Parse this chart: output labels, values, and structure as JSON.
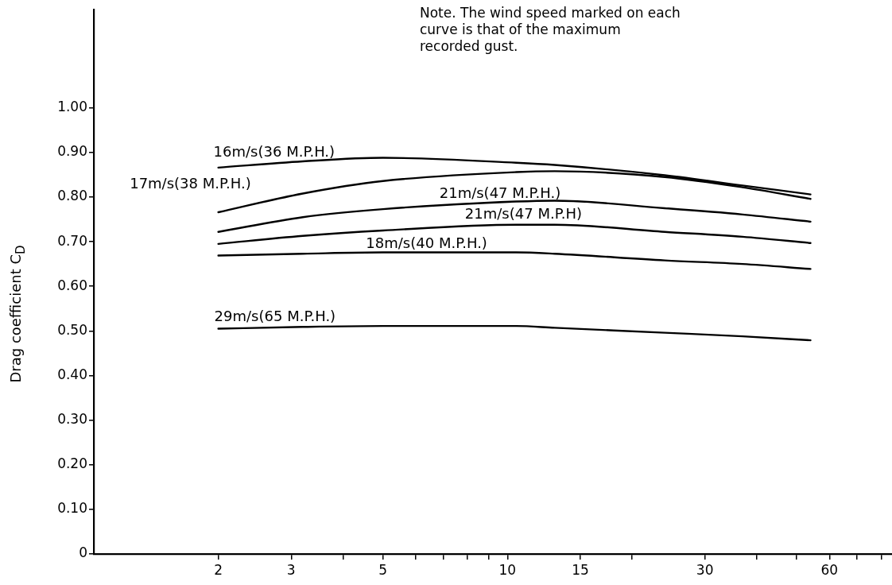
{
  "chart_data": {
    "type": "line",
    "ylabel": "Drag coefficient C$_{D}$",
    "log": "x",
    "legend": false,
    "marker": "none",
    "line_style": "solid",
    "annotations": [
      "Note. The wind speed marked on each curve is that of the maximum recorded gust."
    ],
    "xlim": [
      1,
      85
    ],
    "xticks": [
      2,
      3,
      {
        "value": 4,
        "label": null
      },
      5,
      {
        "value": 6,
        "label": null
      },
      {
        "value": 7,
        "label": null
      },
      {
        "value": 8,
        "label": null
      },
      {
        "value": 9,
        "label": null
      },
      10,
      15,
      {
        "value": 20,
        "label": null
      },
      30,
      {
        "value": 40,
        "label": null
      },
      {
        "value": 50,
        "label": null
      },
      60,
      {
        "value": 70,
        "label": null
      },
      {
        "value": 80,
        "label": null
      }
    ],
    "ylim": [
      0,
      1.22
    ],
    "yticks": [
      0,
      {
        "value": 0.1,
        "label": "0.10"
      },
      {
        "value": 0.2,
        "label": "0.20"
      },
      {
        "value": 0.3,
        "label": "0.30"
      },
      {
        "value": 0.4,
        "label": "0.40"
      },
      {
        "value": 0.5,
        "label": "0.50"
      },
      {
        "value": 0.6,
        "label": "0.60"
      },
      {
        "value": 0.7,
        "label": "0.70"
      },
      {
        "value": 0.8,
        "label": "0.80"
      },
      {
        "value": 0.9,
        "label": "0.90"
      },
      {
        "value": 1,
        "label": "1.00"
      }
    ],
    "x": [
      2,
      3.2,
      5,
      10.5,
      13,
      24,
      37,
      54
    ],
    "series": [
      {
        "name": "16m/s(36 M.P.H.)",
        "color": "#000000",
        "values": [
          0.866,
          0.88,
          0.888,
          0.877,
          0.872,
          0.849,
          0.826,
          0.806
        ]
      },
      {
        "name": "17m/s(38 M.P.H.)",
        "color": "#000000",
        "values": [
          0.766,
          0.808,
          0.836,
          0.856,
          0.858,
          0.845,
          0.822,
          0.796
        ]
      },
      {
        "name": "21m/s(47 M.P.H.)",
        "color": "#000000",
        "values": [
          0.722,
          0.755,
          0.773,
          0.79,
          0.792,
          0.775,
          0.761,
          0.745
        ]
      },
      {
        "name": "21m/s(47 M.P.H)",
        "color": "#000000",
        "values": [
          0.695,
          0.713,
          0.725,
          0.738,
          0.738,
          0.722,
          0.711,
          0.697
        ]
      },
      {
        "name": "18m/s(40 M.P.H.)",
        "color": "#000000",
        "values": [
          0.669,
          0.673,
          0.676,
          0.676,
          0.673,
          0.658,
          0.65,
          0.639
        ]
      },
      {
        "name": "29m/s(65 M.P.H.)",
        "color": "#000000",
        "values": [
          0.505,
          0.509,
          0.511,
          0.511,
          0.507,
          0.496,
          0.488,
          0.479
        ]
      }
    ]
  }
}
